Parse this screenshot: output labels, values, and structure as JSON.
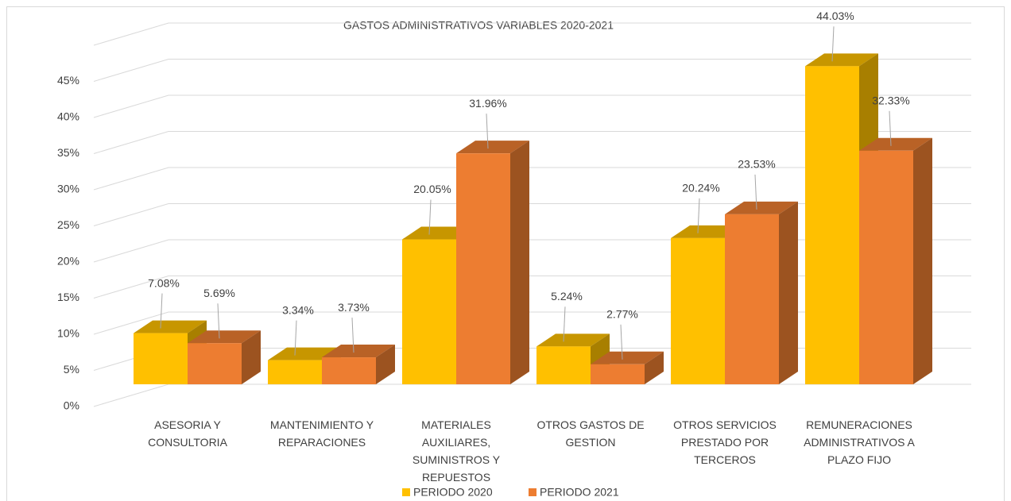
{
  "chart_data": {
    "type": "bar3d",
    "title": "GASTOS ADMINISTRATIVOS VARIABLES 2020-2021",
    "categories": [
      "ASESORIA Y CONSULTORIA",
      "MANTENIMIENTO Y REPARACIONES",
      "MATERIALES AUXILIARES, SUMINISTROS  Y REPUESTOS",
      "OTROS GASTOS DE GESTION",
      "OTROS SERVICIOS PRESTADO POR TERCEROS",
      "REMUNERACIONES ADMINISTRATIVOS A PLAZO FIJO"
    ],
    "series": [
      {
        "name": "PERIODO 2020",
        "color": "#ffc000",
        "values": [
          7.08,
          3.34,
          20.05,
          5.24,
          20.24,
          44.03
        ],
        "value_labels": [
          "7.08%",
          "3.34%",
          "20.05%",
          "5.24%",
          "20.24%",
          "44.03%"
        ]
      },
      {
        "name": "PERIODO 2021",
        "color": "#ed7d31",
        "values": [
          5.69,
          3.73,
          31.96,
          2.77,
          23.53,
          32.33
        ],
        "value_labels": [
          "5.69%",
          "3.73%",
          "31.96%",
          "2.77%",
          "23.53%",
          "32.33%"
        ]
      }
    ],
    "ylim": [
      0,
      50
    ],
    "yticks": [
      {
        "value": 0,
        "label": "0%"
      },
      {
        "value": 5,
        "label": "5%"
      },
      {
        "value": 10,
        "label": "10%"
      },
      {
        "value": 15,
        "label": "15%"
      },
      {
        "value": 20,
        "label": "20%"
      },
      {
        "value": 25,
        "label": "25%"
      },
      {
        "value": 30,
        "label": "30%"
      },
      {
        "value": 35,
        "label": "35%"
      },
      {
        "value": 40,
        "label": "40%"
      },
      {
        "value": 45,
        "label": "45%"
      }
    ],
    "grid": true
  }
}
